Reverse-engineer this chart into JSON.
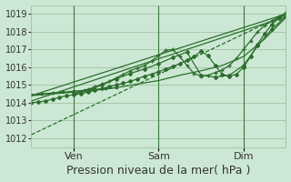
{
  "xlabel": "Pression niveau de la mer( hPa )",
  "bg_color": "#cce8d4",
  "grid_color": "#99bb99",
  "line_color": "#2d6e2d",
  "ylim": [
    1011.5,
    1019.5
  ],
  "yticks": [
    1012,
    1013,
    1014,
    1015,
    1016,
    1017,
    1018,
    1019
  ],
  "xlim": [
    0,
    72
  ],
  "xtick_positions": [
    12,
    36,
    60
  ],
  "xtick_labels": [
    "Ven",
    "Sam",
    "Dim"
  ],
  "lines": [
    {
      "x": [
        0,
        72
      ],
      "y": [
        1012.2,
        1019.0
      ],
      "marker": "None",
      "lw": 0.9,
      "ls": "--"
    },
    {
      "x": [
        0,
        72
      ],
      "y": [
        1014.4,
        1019.0
      ],
      "marker": "None",
      "lw": 0.9,
      "ls": "-"
    },
    {
      "x": [
        0,
        72
      ],
      "y": [
        1014.1,
        1018.85
      ],
      "marker": "None",
      "lw": 0.9,
      "ls": "-"
    },
    {
      "x": [
        0,
        2,
        4,
        6,
        8,
        10,
        12,
        14,
        16,
        18,
        20,
        22,
        24,
        26,
        28,
        30,
        32,
        34,
        36,
        38,
        40,
        42,
        44,
        46,
        48,
        50,
        52,
        54,
        56,
        58,
        60,
        62,
        64,
        66,
        68,
        70,
        72
      ],
      "y": [
        1014.0,
        1014.05,
        1014.1,
        1014.2,
        1014.3,
        1014.4,
        1014.45,
        1014.5,
        1014.6,
        1014.7,
        1014.8,
        1014.9,
        1015.0,
        1015.1,
        1015.2,
        1015.35,
        1015.5,
        1015.6,
        1015.75,
        1015.9,
        1016.05,
        1016.2,
        1016.4,
        1016.6,
        1016.9,
        1016.65,
        1016.1,
        1015.6,
        1015.5,
        1015.6,
        1016.0,
        1016.6,
        1017.3,
        1017.9,
        1018.4,
        1018.75,
        1019.0
      ],
      "marker": "D",
      "ms": 2.0,
      "lw": 0.9,
      "ls": "-"
    },
    {
      "x": [
        12,
        14,
        16,
        18,
        20,
        22,
        24,
        26,
        28,
        30,
        32,
        34,
        36,
        38,
        40,
        42,
        44,
        46,
        48,
        50,
        52,
        54,
        56,
        58,
        60,
        62,
        64,
        66,
        68,
        70,
        72
      ],
      "y": [
        1014.5,
        1014.6,
        1014.75,
        1014.9,
        1015.05,
        1015.2,
        1015.4,
        1015.6,
        1015.8,
        1015.95,
        1016.1,
        1016.35,
        1016.65,
        1016.95,
        1017.0,
        1016.6,
        1016.1,
        1015.65,
        1015.5,
        1015.55,
        1015.7,
        1015.85,
        1016.1,
        1016.5,
        1017.0,
        1017.5,
        1018.0,
        1018.35,
        1018.6,
        1018.85,
        1019.05
      ],
      "marker": "+",
      "ms": 3.5,
      "lw": 0.9,
      "ls": "-"
    },
    {
      "x": [
        12,
        16,
        20,
        24,
        28,
        32,
        36,
        40,
        44,
        48,
        52,
        56,
        60,
        64,
        68,
        72
      ],
      "y": [
        1014.5,
        1014.7,
        1015.0,
        1015.35,
        1015.65,
        1015.9,
        1016.2,
        1016.55,
        1016.85,
        1015.55,
        1015.45,
        1015.55,
        1016.1,
        1017.2,
        1018.15,
        1018.85
      ],
      "marker": "D",
      "ms": 2.0,
      "lw": 0.9,
      "ls": "-"
    },
    {
      "x": [
        0,
        6,
        12,
        18,
        24,
        30,
        36,
        42,
        48,
        54,
        60,
        66,
        72
      ],
      "y": [
        1014.4,
        1014.5,
        1014.6,
        1014.7,
        1014.85,
        1015.05,
        1015.25,
        1015.55,
        1015.8,
        1016.1,
        1016.6,
        1017.6,
        1018.8
      ],
      "marker": "None",
      "lw": 0.9,
      "ls": "-"
    },
    {
      "x": [
        0,
        3,
        6,
        9,
        12,
        15,
        18,
        21,
        24
      ],
      "y": [
        1014.45,
        1014.5,
        1014.55,
        1014.6,
        1014.65,
        1014.7,
        1014.75,
        1014.8,
        1014.85
      ],
      "marker": "s",
      "ms": 2.0,
      "lw": 0.9,
      "ls": "-"
    }
  ],
  "vline_positions": [
    12,
    36,
    60
  ],
  "font_size_xlabel": 9,
  "font_size_ticks": 7
}
